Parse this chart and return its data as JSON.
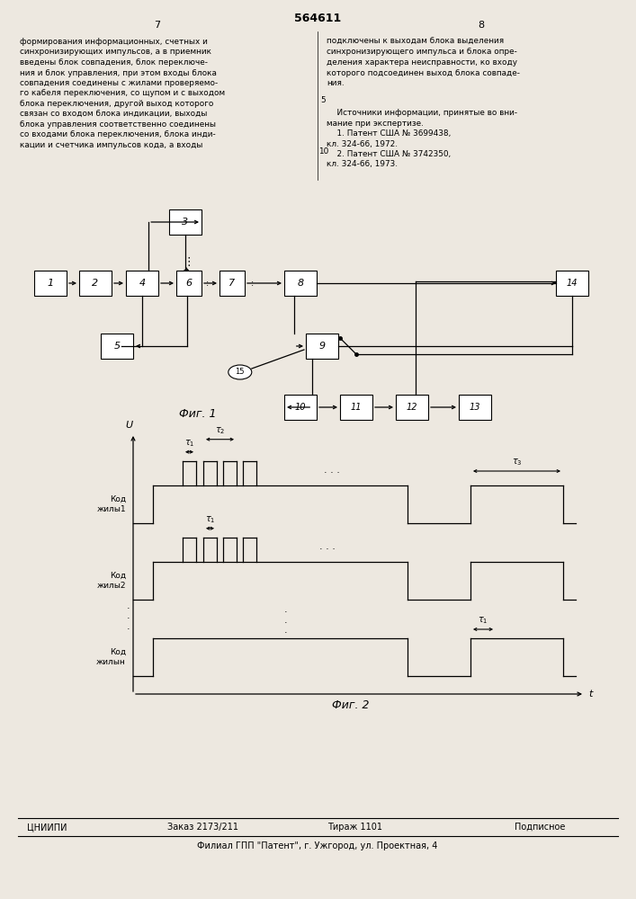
{
  "page_number_left": "7",
  "page_number_right": "8",
  "patent_number": "564611",
  "fig1_label": "Фиг. 1",
  "fig2_label": "Фиг. 2",
  "footer_org": "ЦНИИПИ",
  "footer_order": "Заказ 2173/211",
  "footer_print": "Тираж 1101",
  "footer_sign": "Подписное",
  "footer_branch": "Филиал ГПП \"Патент\", г. Ужгород, ул. Проектная, 4",
  "bg_color": "#ede8e0",
  "left_lines": [
    "формирования информационных, счетных и",
    "синхронизирующих импульсов, а в приемник",
    "введены блок совпадения, блок переключе-",
    "ния и блок управления, при этом входы блока",
    "совпадения соединены с жилами проверяемо-",
    "го кабеля переключения, со щупом и с выходом",
    "блока переключения, другой выход которого",
    "связан со входом блока индикации, выходы",
    "блока управления соответственно соединены",
    "со входами блока переключения, блока инди-",
    "кации и счетчика импульсов кода, а входы"
  ],
  "right_lines": [
    "подключены к выходам блока выделения",
    "синхронизирующего импульса и блока опре-",
    "деления характера неисправности, ко входу",
    "которого подсоединен выход блока совпаде-",
    "ния."
  ],
  "source_lines": [
    "    Источники информации, принятые во вни-",
    "мание при экспертизе.",
    "    1. Патент США № 3699438,",
    "кл. 324-66, 1972.",
    "    2. Патент США № 3742350,",
    "кл. 324-66, 1973."
  ],
  "line_num_5": "5",
  "line_num_10": "10"
}
